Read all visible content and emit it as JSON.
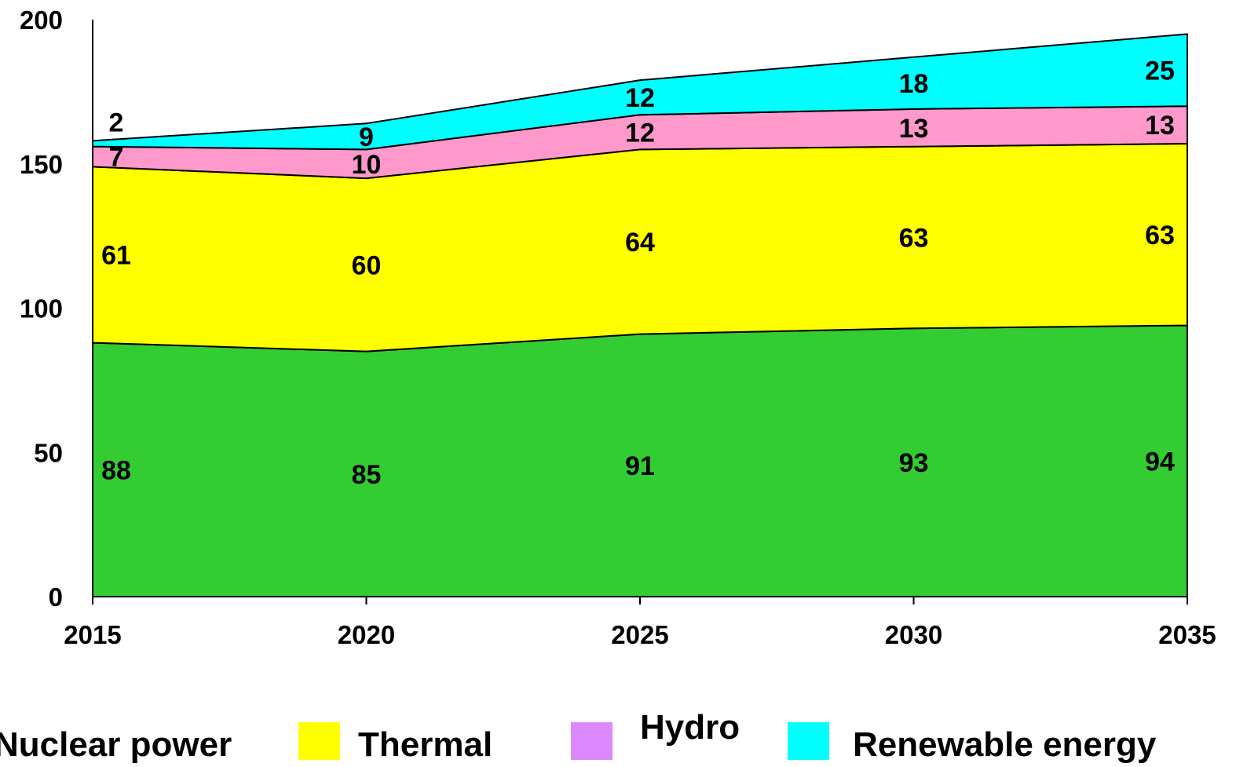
{
  "chart_data": {
    "type": "area",
    "stacked": true,
    "title": "",
    "xlabel": "",
    "ylabel": "",
    "x": [
      "2015",
      "2020",
      "2025",
      "2030",
      "2035"
    ],
    "ylim": [
      0,
      200
    ],
    "yticks": [
      "0",
      "50",
      "100",
      "150",
      "200"
    ],
    "grid": false,
    "legend_position": "bottom",
    "series": [
      {
        "name": "Nuclear power",
        "values": [
          88,
          85,
          91,
          93,
          94
        ],
        "color": "#33cc33"
      },
      {
        "name": "Thermal",
        "values": [
          61,
          60,
          64,
          63,
          63
        ],
        "color": "#ffff00"
      },
      {
        "name": "Hydro",
        "values": [
          7,
          10,
          12,
          13,
          13
        ],
        "color": "#ff99cc",
        "legend_color": "#dd88ff"
      },
      {
        "name": "Renewable energy",
        "values": [
          2,
          9,
          12,
          18,
          25
        ],
        "color": "#00ffff"
      }
    ]
  }
}
